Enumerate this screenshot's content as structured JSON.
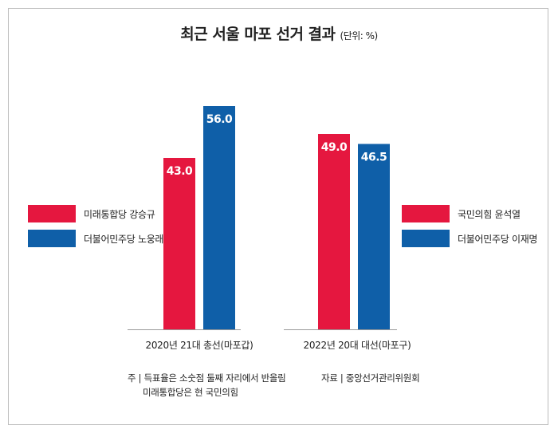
{
  "title": "최근 서울 마포 선거 결과",
  "unit": "(단위: %)",
  "colors": {
    "red": "#e5173f",
    "blue": "#0f5fa8"
  },
  "legend_left": [
    {
      "label": "미래통합당 강승규",
      "color": "#e5173f"
    },
    {
      "label": "더불어민주당 노웅래",
      "color": "#0f5fa8"
    }
  ],
  "legend_right": [
    {
      "label": "국민의힘 윤석열",
      "color": "#e5173f"
    },
    {
      "label": "더불어민주당 이재명",
      "color": "#0f5fa8"
    }
  ],
  "notes": {
    "line1": "주 | 득표율은 소숫점 둘째 자리에서 반올림",
    "line2": "미래통합당은 현 국민의힘"
  },
  "source": "자료 | 중앙선거관리위원회",
  "chart_data": {
    "type": "bar",
    "title": "최근 서울 마포 선거 결과",
    "unit": "%",
    "categories": [
      "2020년 21대 총선(마포갑)",
      "2022년 20대 대선(마포구)"
    ],
    "series": [
      {
        "color": "#e5173f",
        "values": [
          43.0,
          49.0
        ],
        "labels": [
          "43.0",
          "49.0"
        ]
      },
      {
        "color": "#0f5fa8",
        "values": [
          56.0,
          46.5
        ],
        "labels": [
          "56.0",
          "46.5"
        ]
      }
    ],
    "ylim": [
      0,
      70
    ],
    "grid": false
  }
}
